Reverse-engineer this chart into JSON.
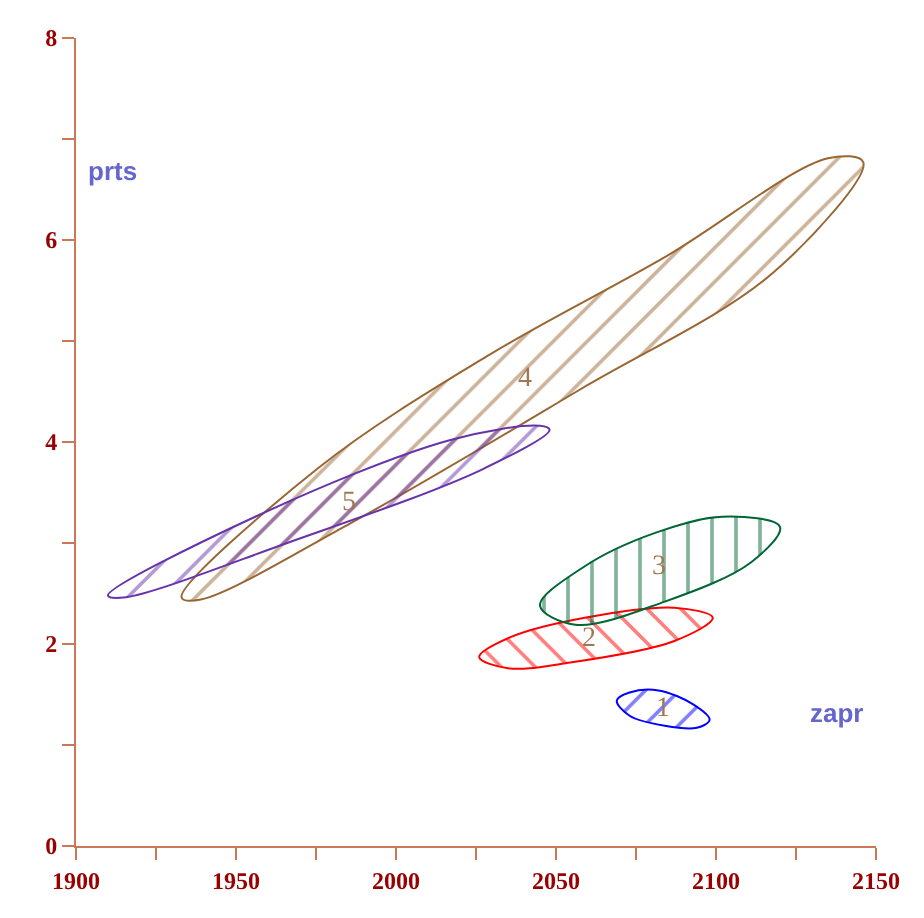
{
  "chart_data": {
    "type": "area",
    "xlabel": "zapr",
    "ylabel": "prts",
    "xlim": [
      1900,
      2150
    ],
    "xticks": [
      1900,
      {
        "value": 1925,
        "label": null
      },
      1950,
      {
        "value": 1975,
        "label": null
      },
      2000,
      {
        "value": 2025,
        "label": null
      },
      2050,
      {
        "value": 2075,
        "label": null
      },
      2100,
      {
        "value": 2125,
        "label": null
      },
      2150
    ],
    "ylim": [
      0,
      8
    ],
    "yticks": [
      0,
      {
        "value": 1,
        "label": null
      },
      2,
      {
        "value": 3,
        "label": null
      },
      4,
      {
        "value": 5,
        "label": null
      },
      6,
      {
        "value": 7,
        "label": null
      },
      8
    ],
    "legend": false,
    "marker": "none",
    "line_style": "solid",
    "series": [
      {
        "name": "1",
        "color": "#0000ff",
        "x": [
          2069,
          2073,
          2082,
          2093,
          2098,
          2094,
          2084,
          2073
        ],
        "values": [
          1.44,
          1.52,
          1.54,
          1.4,
          1.25,
          1.17,
          1.19,
          1.29
        ]
      },
      {
        "name": "2",
        "color": "#ff0000",
        "x": [
          2026,
          2036,
          2059,
          2087,
          2099,
          2087,
          2053,
          2035
        ],
        "values": [
          1.87,
          2.07,
          2.26,
          2.36,
          2.26,
          2.03,
          1.81,
          1.76
        ]
      },
      {
        "name": "3",
        "color": "#006633",
        "x": [
          2045,
          2059,
          2081,
          2102,
          2120,
          2111,
          2084,
          2056
        ],
        "values": [
          2.38,
          2.77,
          3.1,
          3.26,
          3.16,
          2.81,
          2.42,
          2.19
        ]
      },
      {
        "name": "4",
        "color": "#996633",
        "x": [
          1933,
          1976,
          2029,
          2084,
          2135,
          2146,
          2118,
          2057,
          1986,
          1939
        ],
        "values": [
          2.46,
          3.75,
          4.86,
          5.83,
          6.81,
          6.77,
          5.68,
          4.51,
          3.2,
          2.44
        ]
      },
      {
        "name": "5",
        "color": "#6633aa",
        "x": [
          1910,
          1956,
          2017,
          2045,
          2048,
          2027,
          1966,
          1915
        ],
        "values": [
          2.48,
          3.26,
          4.02,
          4.16,
          4.12,
          3.73,
          3.0,
          2.46
        ]
      }
    ]
  }
}
